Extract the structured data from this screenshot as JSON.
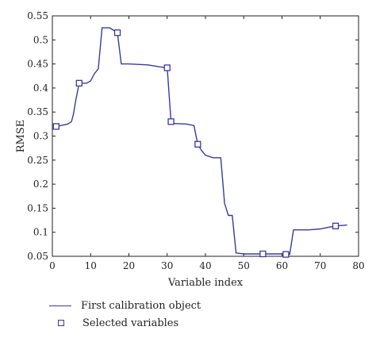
{
  "chart_data": {
    "type": "line",
    "xlabel": "Variable index",
    "ylabel": "RMSE",
    "xlim": [
      0,
      80
    ],
    "ylim": [
      0.05,
      0.55
    ],
    "xticks": [
      0,
      10,
      20,
      30,
      40,
      50,
      60,
      70,
      80
    ],
    "yticks": [
      0.05,
      0.1,
      0.15,
      0.2,
      0.25,
      0.3,
      0.35,
      0.4,
      0.45,
      0.5,
      0.55
    ],
    "grid": false,
    "legend_position": "below",
    "series": [
      {
        "name": "First calibration object",
        "color": "#3a3aa0",
        "x": [
          1,
          4,
          5,
          5.5,
          6,
          7,
          8,
          9,
          10,
          11,
          12,
          13,
          14,
          15,
          16,
          17,
          18,
          20,
          25,
          28,
          30,
          31,
          32,
          35,
          37,
          38,
          39,
          40,
          42,
          43,
          44,
          45,
          46,
          47,
          48,
          50,
          55,
          60,
          61,
          62,
          63,
          67,
          70,
          72,
          74,
          77
        ],
        "y": [
          0.32,
          0.325,
          0.33,
          0.345,
          0.37,
          0.41,
          0.41,
          0.41,
          0.415,
          0.43,
          0.44,
          0.525,
          0.525,
          0.525,
          0.52,
          0.515,
          0.45,
          0.45,
          0.448,
          0.444,
          0.442,
          0.33,
          0.326,
          0.325,
          0.322,
          0.283,
          0.27,
          0.26,
          0.255,
          0.255,
          0.255,
          0.16,
          0.135,
          0.135,
          0.057,
          0.055,
          0.055,
          0.055,
          0.054,
          0.054,
          0.105,
          0.105,
          0.107,
          0.11,
          0.113,
          0.115
        ]
      }
    ],
    "selected_variables": {
      "name": "Selected variables",
      "color": "#3a3aa0",
      "x": [
        1,
        7,
        17,
        30,
        31,
        38,
        55,
        61,
        74
      ],
      "y": [
        0.32,
        0.41,
        0.515,
        0.442,
        0.33,
        0.283,
        0.055,
        0.054,
        0.113
      ]
    }
  }
}
